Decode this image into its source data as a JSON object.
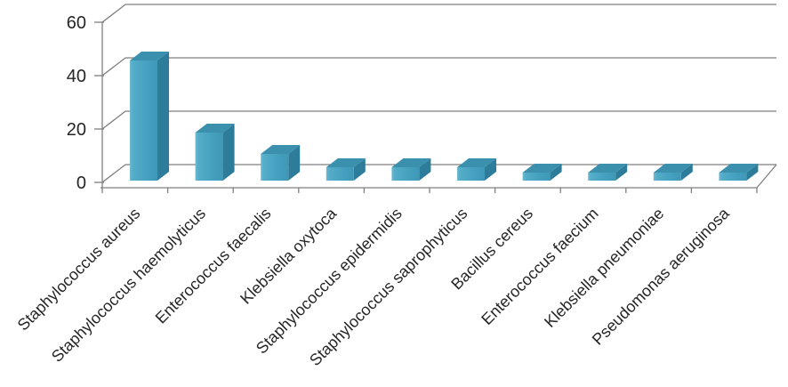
{
  "chart_data": {
    "type": "bar",
    "variant": "3d-column",
    "title": "",
    "xlabel": "",
    "ylabel": "",
    "categories": [
      "Staphylococcus aureus",
      "Staphylococcus haemolyticus",
      "Enterococcus faecalis",
      "Klebsiella oxytoca",
      "Staphylococcus epidermidis",
      "Staphylococcus saprophyticus",
      "Bacillus cereus",
      "Enterococcus faecium",
      "Klebsiella pneumoniae",
      "Pseudomonas aeruginosa"
    ],
    "values": [
      45,
      18,
      10,
      5,
      5,
      5,
      3,
      3,
      3,
      3
    ],
    "ylim": [
      0,
      60
    ],
    "yticks": [
      0,
      20,
      40,
      60
    ],
    "ytick_labels": [
      "0",
      "20",
      "40",
      "60"
    ],
    "grid": true,
    "legend": "none",
    "category_label_rotation_deg": -45,
    "colors": {
      "bar_front": "#46A2C0",
      "bar_front_highlight": "#6BB9D0",
      "bar_top": "#3B90AE",
      "bar_side": "#2D7C99",
      "gridline": "#7F7F7F",
      "axis": "#7F7F7F",
      "text": "#262626",
      "background": "#FFFFFF"
    }
  }
}
